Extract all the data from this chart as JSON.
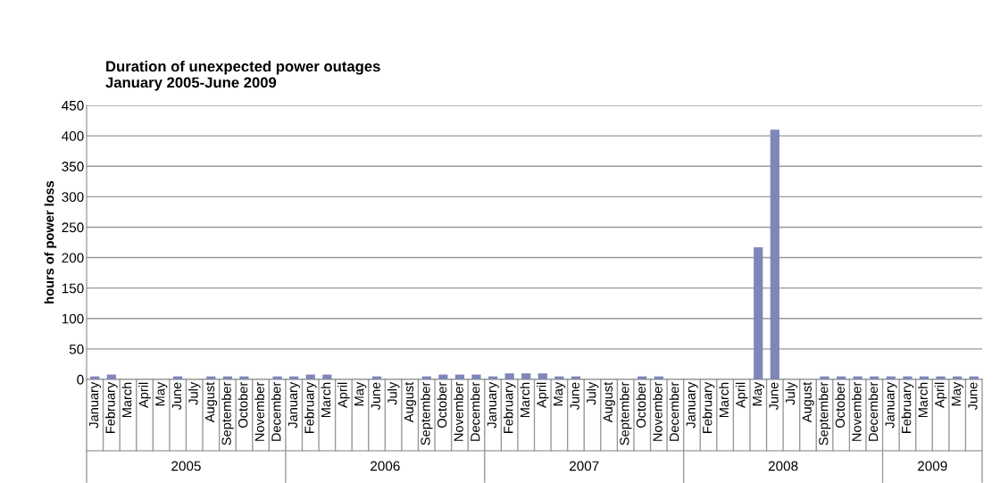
{
  "chart_data": {
    "type": "bar",
    "title": "Duration of unexpected power outages\nJanuary 2005-June 2009",
    "ylabel": "hours of power loss",
    "categories": [
      "January",
      "February",
      "March",
      "April",
      "May",
      "June",
      "July",
      "August",
      "September",
      "October",
      "November",
      "December",
      "January",
      "February",
      "March",
      "April",
      "May",
      "June",
      "July",
      "August",
      "September",
      "October",
      "November",
      "December",
      "January",
      "February",
      "March",
      "April",
      "May",
      "June",
      "July",
      "August",
      "September",
      "October",
      "November",
      "December",
      "January",
      "February",
      "March",
      "April",
      "May",
      "June",
      "July",
      "August",
      "September",
      "October",
      "November",
      "December",
      "January",
      "February",
      "March",
      "April",
      "May",
      "June"
    ],
    "values": [
      5,
      8,
      0,
      0,
      0,
      5,
      0,
      5,
      5,
      5,
      0,
      5,
      5,
      8,
      8,
      0,
      0,
      5,
      0,
      0,
      5,
      8,
      8,
      8,
      5,
      10,
      10,
      10,
      5,
      5,
      0,
      0,
      0,
      5,
      5,
      0,
      0,
      0,
      0,
      0,
      217,
      410,
      0,
      0,
      5,
      5,
      5,
      5,
      5,
      5,
      5,
      5,
      5,
      5
    ],
    "color": "#7f86b8",
    "annotations": [
      "2005",
      "2006",
      "2007",
      "2008",
      "2009"
    ],
    "ylim": [
      0,
      450
    ],
    "yticks": [
      0,
      50,
      100,
      150,
      200,
      250,
      300,
      350,
      400,
      450
    ],
    "grid": "y"
  }
}
